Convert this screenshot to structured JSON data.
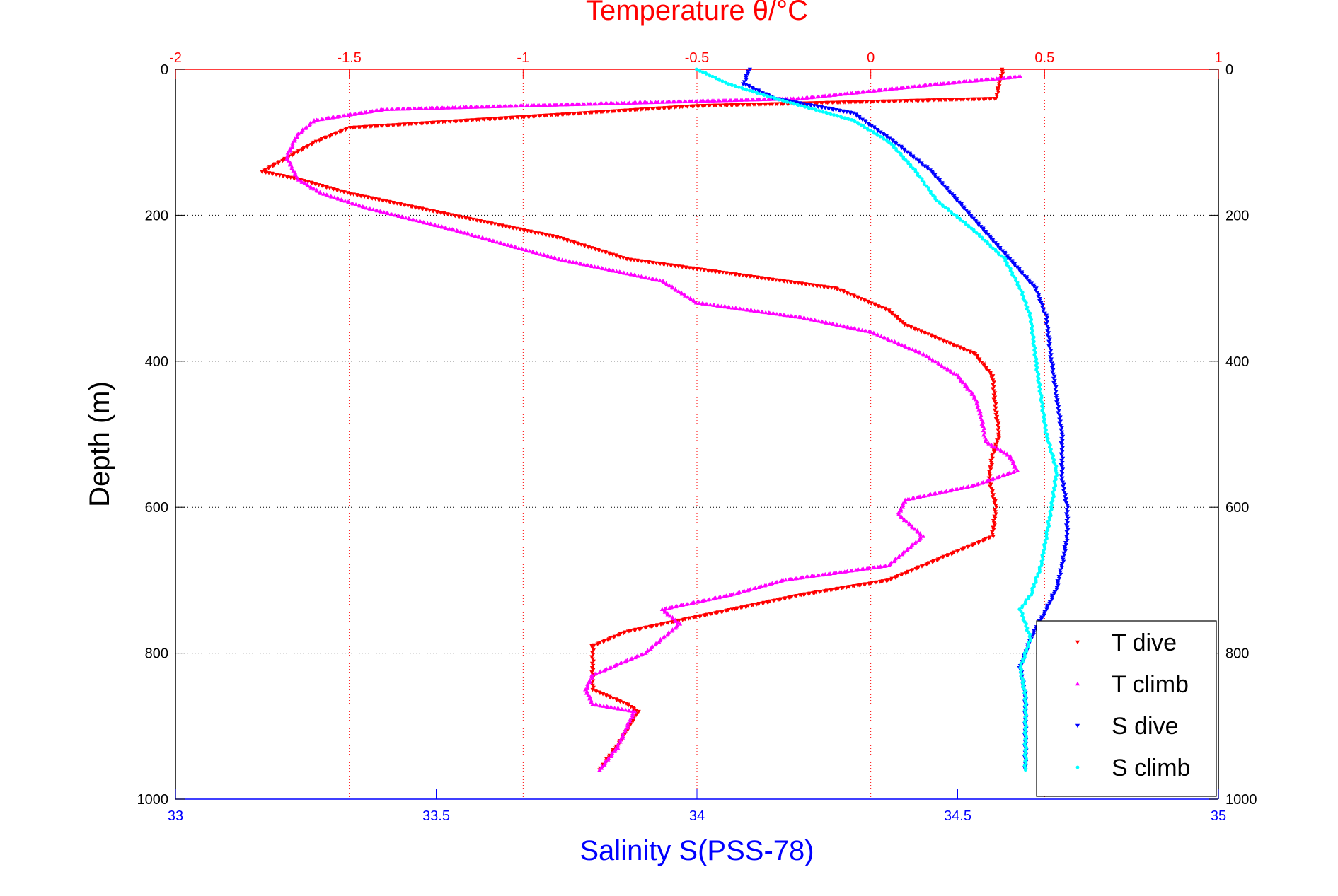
{
  "chart_data": {
    "type": "scatter",
    "title_top": "Temperature θ/°C",
    "xlabel": "Salinity S(PSS-78)",
    "ylabel": "Depth (m)",
    "x_top": {
      "label": "Temperature θ/°C",
      "lim": [
        -2,
        1
      ],
      "ticks": [
        -2,
        -1.5,
        -1,
        -0.5,
        0,
        0.5,
        1
      ],
      "tick_labels": [
        "-2",
        "-1.5",
        "-1",
        "-0.5",
        "0",
        "0.5",
        "1"
      ]
    },
    "x_bottom": {
      "label": "Salinity S(PSS-78)",
      "lim": [
        33,
        35
      ],
      "ticks": [
        33,
        33.5,
        34,
        34.5,
        35
      ],
      "tick_labels": [
        "33",
        "33.5",
        "34",
        "34.5",
        "35"
      ]
    },
    "y": {
      "label": "Depth (m)",
      "lim": [
        0,
        1000
      ],
      "reversed": true,
      "ticks": [
        0,
        200,
        400,
        600,
        800,
        1000
      ],
      "tick_labels": [
        "0",
        "200",
        "400",
        "600",
        "800",
        "1000"
      ]
    },
    "grid": true,
    "legend_position": "bottom-right",
    "series": [
      {
        "name": "T dive",
        "axis": "top",
        "marker": "triangle-down",
        "color": "#ff0000",
        "points": [
          [
            0.38,
            0
          ],
          [
            0.37,
            20
          ],
          [
            0.36,
            40
          ],
          [
            -0.5,
            50
          ],
          [
            -1.5,
            80
          ],
          [
            -1.6,
            100
          ],
          [
            -1.75,
            140
          ],
          [
            -1.65,
            150
          ],
          [
            -1.5,
            170
          ],
          [
            -1.2,
            200
          ],
          [
            -0.9,
            230
          ],
          [
            -0.7,
            260
          ],
          [
            -0.4,
            280
          ],
          [
            -0.1,
            300
          ],
          [
            0.05,
            330
          ],
          [
            0.1,
            350
          ],
          [
            0.2,
            370
          ],
          [
            0.3,
            390
          ],
          [
            0.35,
            420
          ],
          [
            0.36,
            470
          ],
          [
            0.37,
            500
          ],
          [
            0.35,
            530
          ],
          [
            0.34,
            560
          ],
          [
            0.36,
            600
          ],
          [
            0.35,
            640
          ],
          [
            0.2,
            670
          ],
          [
            0.05,
            700
          ],
          [
            -0.2,
            720
          ],
          [
            -0.4,
            740
          ],
          [
            -0.7,
            770
          ],
          [
            -0.8,
            790
          ],
          [
            -0.8,
            820
          ],
          [
            -0.8,
            850
          ],
          [
            -0.7,
            870
          ],
          [
            -0.67,
            880
          ],
          [
            -0.72,
            920
          ],
          [
            -0.78,
            960
          ]
        ]
      },
      {
        "name": "T climb",
        "axis": "top",
        "marker": "triangle-up",
        "color": "#ff00ff",
        "points": [
          [
            0.43,
            10
          ],
          [
            0.2,
            20
          ],
          [
            -0.2,
            40
          ],
          [
            -1.4,
            55
          ],
          [
            -1.6,
            70
          ],
          [
            -1.65,
            90
          ],
          [
            -1.68,
            120
          ],
          [
            -1.65,
            150
          ],
          [
            -1.58,
            170
          ],
          [
            -1.45,
            190
          ],
          [
            -1.2,
            220
          ],
          [
            -0.9,
            260
          ],
          [
            -0.6,
            290
          ],
          [
            -0.5,
            320
          ],
          [
            -0.2,
            340
          ],
          [
            0,
            360
          ],
          [
            0.15,
            390
          ],
          [
            0.25,
            420
          ],
          [
            0.3,
            450
          ],
          [
            0.32,
            480
          ],
          [
            0.33,
            510
          ],
          [
            0.4,
            530
          ],
          [
            0.42,
            550
          ],
          [
            0.3,
            570
          ],
          [
            0.1,
            590
          ],
          [
            0.08,
            610
          ],
          [
            0.15,
            640
          ],
          [
            0.05,
            680
          ],
          [
            -0.25,
            700
          ],
          [
            -0.4,
            720
          ],
          [
            -0.6,
            740
          ],
          [
            -0.55,
            760
          ],
          [
            -0.65,
            800
          ],
          [
            -0.8,
            830
          ],
          [
            -0.82,
            850
          ],
          [
            -0.8,
            870
          ],
          [
            -0.68,
            880
          ],
          [
            -0.73,
            930
          ],
          [
            -0.78,
            960
          ]
        ]
      },
      {
        "name": "S dive",
        "axis": "bottom",
        "marker": "triangle-down",
        "color": "#0000ff",
        "points": [
          [
            34.1,
            0
          ],
          [
            34.09,
            20
          ],
          [
            34.15,
            40
          ],
          [
            34.3,
            60
          ],
          [
            34.38,
            100
          ],
          [
            34.45,
            140
          ],
          [
            34.5,
            180
          ],
          [
            34.55,
            220
          ],
          [
            34.6,
            260
          ],
          [
            34.65,
            300
          ],
          [
            34.67,
            340
          ],
          [
            34.68,
            400
          ],
          [
            34.69,
            450
          ],
          [
            34.7,
            500
          ],
          [
            34.7,
            560
          ],
          [
            34.71,
            600
          ],
          [
            34.71,
            640
          ],
          [
            34.7,
            680
          ],
          [
            34.69,
            710
          ],
          [
            34.67,
            740
          ],
          [
            34.64,
            780
          ],
          [
            34.62,
            820
          ],
          [
            34.63,
            860
          ],
          [
            34.63,
            900
          ],
          [
            34.63,
            960
          ]
        ]
      },
      {
        "name": "S climb",
        "axis": "bottom",
        "marker": "point",
        "color": "#00ffff",
        "points": [
          [
            34.0,
            0
          ],
          [
            34.06,
            20
          ],
          [
            34.15,
            40
          ],
          [
            34.3,
            70
          ],
          [
            34.37,
            100
          ],
          [
            34.42,
            140
          ],
          [
            34.46,
            180
          ],
          [
            34.53,
            220
          ],
          [
            34.59,
            260
          ],
          [
            34.62,
            300
          ],
          [
            34.64,
            340
          ],
          [
            34.65,
            400
          ],
          [
            34.66,
            450
          ],
          [
            34.67,
            500
          ],
          [
            34.69,
            550
          ],
          [
            34.68,
            600
          ],
          [
            34.67,
            640
          ],
          [
            34.66,
            680
          ],
          [
            34.64,
            720
          ],
          [
            34.62,
            740
          ],
          [
            34.64,
            780
          ],
          [
            34.62,
            820
          ],
          [
            34.63,
            860
          ],
          [
            34.63,
            900
          ],
          [
            34.63,
            960
          ]
        ]
      }
    ]
  }
}
